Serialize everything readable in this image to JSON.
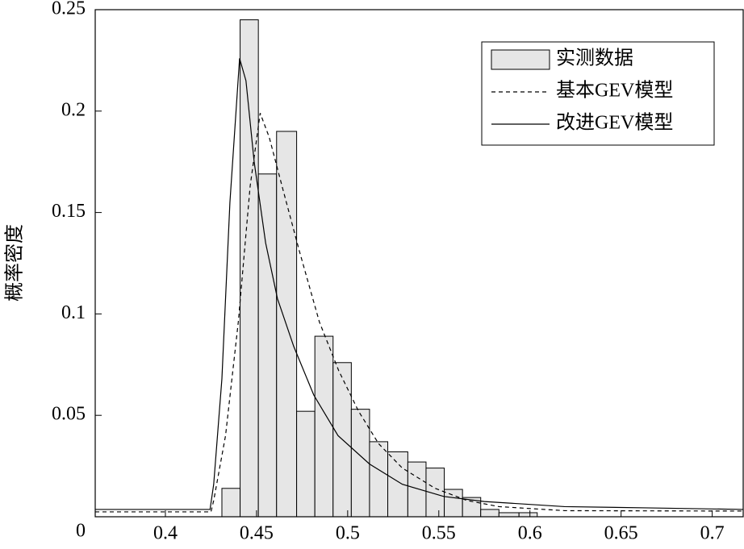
{
  "chart_data": {
    "type": "histogram_lines",
    "ylabel": "概率密度",
    "bins": [
      0.431,
      0.441,
      0.451,
      0.461,
      0.472,
      0.482,
      0.492,
      0.502,
      0.512,
      0.522,
      0.533,
      0.543,
      0.553,
      0.563,
      0.573,
      0.583,
      0.594,
      0.604
    ],
    "counts": [
      0.014,
      0.245,
      0.169,
      0.19,
      0.052,
      0.089,
      0.076,
      0.053,
      0.037,
      0.032,
      0.027,
      0.024,
      0.0135,
      0.0095,
      0.0036,
      0.002,
      0.002
    ],
    "hist_name": "实测数据",
    "hist_color": "#e6e6e6",
    "series": [
      {
        "name": "基本GEV模型",
        "color": "#000000",
        "dash": true,
        "x": [
          0.3615,
          0.425,
          0.4265,
          0.433,
          0.44,
          0.4465,
          0.452,
          0.457,
          0.464,
          0.4735,
          0.4845,
          0.4951,
          0.506,
          0.517,
          0.53,
          0.548,
          0.5655,
          0.583,
          0.619,
          0.717
        ],
        "values": [
          0.0024,
          0.0024,
          0.008,
          0.04,
          0.096,
          0.163,
          0.199,
          0.187,
          0.163,
          0.131,
          0.096,
          0.072,
          0.052,
          0.036,
          0.024,
          0.014,
          0.008,
          0.005,
          0.003,
          0.0028
        ]
      },
      {
        "name": "改进GEV模型",
        "color": "#000000",
        "dash": false,
        "x": [
          0.3615,
          0.4245,
          0.4265,
          0.431,
          0.4354,
          0.4407,
          0.4442,
          0.4487,
          0.455,
          0.4615,
          0.4704,
          0.4814,
          0.4947,
          0.512,
          0.53,
          0.5527,
          0.575,
          0.619,
          0.6633,
          0.717
        ],
        "values": [
          0.0036,
          0.0036,
          0.016,
          0.068,
          0.155,
          0.226,
          0.215,
          0.175,
          0.135,
          0.1075,
          0.084,
          0.06,
          0.04,
          0.026,
          0.016,
          0.01,
          0.0075,
          0.005,
          0.0044,
          0.0036
        ]
      }
    ],
    "xlim": [
      0.3615,
      0.717
    ],
    "ylim": [
      0,
      0.25
    ],
    "xticks": [
      0.4,
      0.45,
      0.5,
      0.55,
      0.6,
      0.65,
      0.7
    ],
    "yticks": [
      0,
      0.05,
      0.1,
      0.15,
      0.2,
      0.25
    ],
    "legend": "upper right"
  }
}
